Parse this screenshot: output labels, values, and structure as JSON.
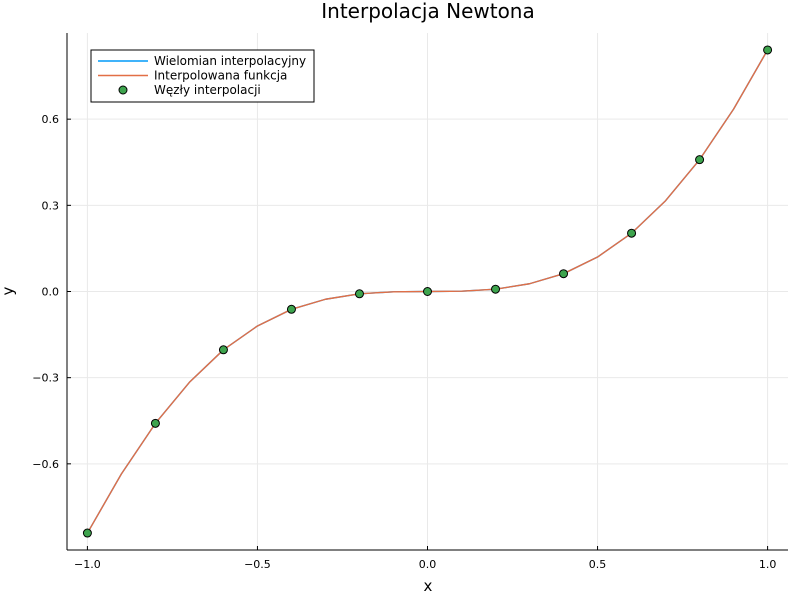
{
  "chart_data": {
    "type": "line",
    "title": "Interpolacja Newtona",
    "xlabel": "x",
    "ylabel": "y",
    "xlim": [
      -1.06,
      1.06
    ],
    "ylim": [
      -0.9,
      0.9
    ],
    "xticks": [
      -1.0,
      -0.5,
      0.0,
      0.5,
      1.0
    ],
    "xtick_labels": [
      "−1.0",
      "−0.5",
      "0.0",
      "0.5",
      "1.0"
    ],
    "yticks": [
      -0.6,
      -0.3,
      0.0,
      0.3,
      0.6
    ],
    "ytick_labels": [
      "−0.6",
      "−0.3",
      "0.0",
      "0.3",
      "0.6"
    ],
    "grid": true,
    "legend_position": "top-left",
    "series": [
      {
        "name": "Wielomian interpolacyjny",
        "kind": "line",
        "color": "#009af9",
        "x": [
          -1.0,
          -0.9,
          -0.8,
          -0.7,
          -0.6,
          -0.5,
          -0.4,
          -0.3,
          -0.2,
          -0.1,
          0.0,
          0.1,
          0.2,
          0.3,
          0.4,
          0.5,
          0.6,
          0.7,
          0.8,
          0.9,
          1.0
        ],
        "y": [
          -0.841,
          -0.635,
          -0.459,
          -0.316,
          -0.203,
          -0.12,
          -0.062,
          -0.027,
          -0.008,
          -0.001,
          0.0,
          0.001,
          0.008,
          0.027,
          0.062,
          0.12,
          0.203,
          0.316,
          0.459,
          0.635,
          0.841
        ]
      },
      {
        "name": "Interpolowana funkcja",
        "kind": "line",
        "color": "#e26f46",
        "x": [
          -1.0,
          -0.9,
          -0.8,
          -0.7,
          -0.6,
          -0.5,
          -0.4,
          -0.3,
          -0.2,
          -0.1,
          0.0,
          0.1,
          0.2,
          0.3,
          0.4,
          0.5,
          0.6,
          0.7,
          0.8,
          0.9,
          1.0
        ],
        "y": [
          -0.841,
          -0.635,
          -0.459,
          -0.316,
          -0.203,
          -0.12,
          -0.062,
          -0.027,
          -0.008,
          -0.001,
          0.0,
          0.001,
          0.008,
          0.027,
          0.062,
          0.12,
          0.203,
          0.316,
          0.459,
          0.635,
          0.841
        ]
      },
      {
        "name": "Węzły interpolacji",
        "kind": "scatter",
        "color": "#3ea44e",
        "x": [
          -1.0,
          -0.8,
          -0.6,
          -0.4,
          -0.2,
          0.0,
          0.2,
          0.4,
          0.6,
          0.8,
          1.0
        ],
        "y": [
          -0.841,
          -0.459,
          -0.203,
          -0.062,
          -0.008,
          0.0,
          0.008,
          0.062,
          0.203,
          0.459,
          0.841
        ]
      }
    ]
  }
}
